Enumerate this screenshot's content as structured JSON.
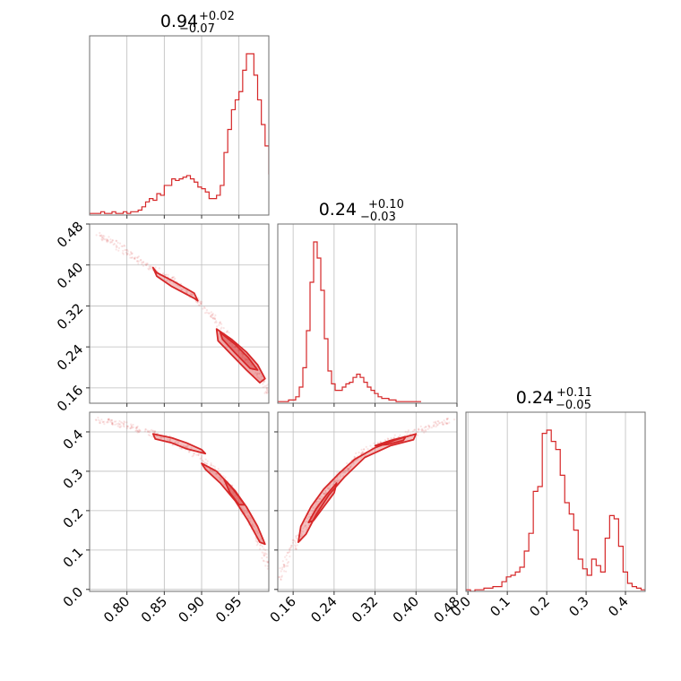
{
  "chart_data": {
    "type": "corner",
    "colors": {
      "line": "#d62728",
      "fill": "#d62728",
      "frame": "#6e6e6e",
      "grid": "#bdbdbd"
    },
    "grid": true,
    "parameters": [
      {
        "title": "0.94",
        "title_plus": "+0.02",
        "title_minus": "−0.07",
        "range": [
          0.75,
          0.99
        ],
        "ticks": [
          0.8,
          0.85,
          0.9,
          0.95
        ],
        "tick_labels": [
          "0.80",
          "0.85",
          "0.90",
          "0.95"
        ],
        "hist_x0": 0.75,
        "hist_dx": 0.005,
        "hist": [
          1,
          1,
          1,
          2,
          1,
          1,
          2,
          1,
          1,
          2,
          1,
          2,
          2,
          3,
          5,
          8,
          10,
          9,
          13,
          12,
          18,
          18,
          22,
          21,
          22,
          23,
          24,
          22,
          20,
          17,
          16,
          14,
          10,
          10,
          12,
          18,
          38,
          52,
          64,
          70,
          75,
          88,
          98,
          98,
          85,
          70,
          55,
          42,
          25,
          12
        ]
      },
      {
        "title": "0.24",
        "title_plus": "+0.10",
        "title_minus": "−0.03",
        "range": [
          0.13,
          0.48
        ],
        "ticks": [
          0.16,
          0.24,
          0.32,
          0.4,
          0.48
        ],
        "tick_labels": [
          "0.16",
          "0.24",
          "0.32",
          "0.40",
          "0.48"
        ],
        "hist_x0": 0.13,
        "hist_dx": 0.007,
        "hist": [
          1,
          1,
          1,
          2,
          2,
          4,
          10,
          22,
          45,
          75,
          100,
          90,
          70,
          40,
          20,
          12,
          8,
          8,
          10,
          12,
          13,
          16,
          18,
          16,
          13,
          10,
          8,
          6,
          4,
          3,
          3,
          2,
          2,
          1,
          1,
          1,
          1,
          1,
          1,
          1
        ]
      },
      {
        "title": "0.24",
        "title_plus": "+0.11",
        "title_minus": "−0.05",
        "range": [
          -0.005,
          0.45
        ],
        "ticks": [
          0.0,
          0.1,
          0.2,
          0.3,
          0.4
        ],
        "tick_labels": [
          "0.0",
          "0.1",
          "0.2",
          "0.3",
          "0.4"
        ],
        "hist_x0": -0.005,
        "hist_dx": 0.0114,
        "hist": [
          1,
          0,
          1,
          1,
          2,
          2,
          3,
          3,
          6,
          9,
          10,
          12,
          15,
          25,
          36,
          62,
          65,
          98,
          100,
          93,
          88,
          72,
          55,
          48,
          38,
          20,
          14,
          10,
          20,
          16,
          12,
          33,
          47,
          45,
          28,
          12,
          5,
          3,
          2,
          1
        ]
      }
    ],
    "pairs": [
      {
        "x_param": 0,
        "y_param": 1,
        "row": 1,
        "col": 0,
        "curve": [
          [
            0.76,
            0.46
          ],
          [
            0.78,
            0.445
          ],
          [
            0.8,
            0.425
          ],
          [
            0.82,
            0.405
          ],
          [
            0.84,
            0.39
          ],
          [
            0.86,
            0.37
          ],
          [
            0.88,
            0.35
          ],
          [
            0.9,
            0.32
          ],
          [
            0.92,
            0.29
          ],
          [
            0.94,
            0.25
          ],
          [
            0.96,
            0.22
          ],
          [
            0.98,
            0.175
          ],
          [
            0.99,
            0.15
          ]
        ],
        "contours": [
          [
            [
              0.835,
              0.395
            ],
            [
              0.84,
              0.385
            ],
            [
              0.86,
              0.37
            ],
            [
              0.89,
              0.345
            ],
            [
              0.895,
              0.33
            ],
            [
              0.89,
              0.335
            ],
            [
              0.86,
              0.358
            ],
            [
              0.84,
              0.378
            ],
            [
              0.835,
              0.395
            ]
          ],
          [
            [
              0.92,
              0.275
            ],
            [
              0.94,
              0.255
            ],
            [
              0.96,
              0.23
            ],
            [
              0.975,
              0.205
            ],
            [
              0.985,
              0.178
            ],
            [
              0.978,
              0.17
            ],
            [
              0.96,
              0.195
            ],
            [
              0.94,
              0.225
            ],
            [
              0.922,
              0.252
            ],
            [
              0.92,
              0.275
            ]
          ],
          [
            [
              0.925,
              0.268
            ],
            [
              0.945,
              0.245
            ],
            [
              0.962,
              0.22
            ],
            [
              0.975,
              0.195
            ],
            [
              0.965,
              0.198
            ],
            [
              0.945,
              0.228
            ],
            [
              0.928,
              0.255
            ],
            [
              0.925,
              0.268
            ]
          ]
        ]
      },
      {
        "x_param": 0,
        "y_param": 2,
        "row": 2,
        "col": 0,
        "curve": [
          [
            0.76,
            0.43
          ],
          [
            0.78,
            0.425
          ],
          [
            0.8,
            0.415
          ],
          [
            0.82,
            0.405
          ],
          [
            0.84,
            0.392
          ],
          [
            0.86,
            0.378
          ],
          [
            0.88,
            0.36
          ],
          [
            0.9,
            0.33
          ],
          [
            0.92,
            0.3
          ],
          [
            0.94,
            0.255
          ],
          [
            0.96,
            0.19
          ],
          [
            0.98,
            0.11
          ],
          [
            0.99,
            0.05
          ]
        ],
        "contours": [
          [
            [
              0.835,
              0.395
            ],
            [
              0.86,
              0.385
            ],
            [
              0.88,
              0.372
            ],
            [
              0.9,
              0.355
            ],
            [
              0.905,
              0.345
            ],
            [
              0.88,
              0.357
            ],
            [
              0.86,
              0.372
            ],
            [
              0.838,
              0.382
            ],
            [
              0.835,
              0.395
            ]
          ],
          [
            [
              0.9,
              0.32
            ],
            [
              0.92,
              0.3
            ],
            [
              0.94,
              0.26
            ],
            [
              0.96,
              0.21
            ],
            [
              0.975,
              0.16
            ],
            [
              0.985,
              0.115
            ],
            [
              0.978,
              0.12
            ],
            [
              0.962,
              0.175
            ],
            [
              0.945,
              0.225
            ],
            [
              0.925,
              0.27
            ],
            [
              0.905,
              0.305
            ],
            [
              0.9,
              0.32
            ]
          ],
          [
            [
              0.93,
              0.28
            ],
            [
              0.945,
              0.25
            ],
            [
              0.958,
              0.215
            ],
            [
              0.95,
              0.215
            ],
            [
              0.938,
              0.245
            ],
            [
              0.93,
              0.28
            ]
          ]
        ]
      },
      {
        "x_param": 1,
        "y_param": 2,
        "row": 2,
        "col": 1,
        "curve": [
          [
            0.13,
            0.02
          ],
          [
            0.15,
            0.08
          ],
          [
            0.17,
            0.13
          ],
          [
            0.19,
            0.18
          ],
          [
            0.21,
            0.225
          ],
          [
            0.23,
            0.26
          ],
          [
            0.25,
            0.29
          ],
          [
            0.27,
            0.315
          ],
          [
            0.29,
            0.34
          ],
          [
            0.32,
            0.365
          ],
          [
            0.36,
            0.385
          ],
          [
            0.4,
            0.4
          ],
          [
            0.44,
            0.42
          ],
          [
            0.47,
            0.43
          ]
        ],
        "contours": [
          [
            [
              0.17,
              0.12
            ],
            [
              0.175,
              0.16
            ],
            [
              0.195,
              0.21
            ],
            [
              0.22,
              0.255
            ],
            [
              0.25,
              0.295
            ],
            [
              0.28,
              0.33
            ],
            [
              0.32,
              0.36
            ],
            [
              0.36,
              0.38
            ],
            [
              0.4,
              0.395
            ],
            [
              0.395,
              0.38
            ],
            [
              0.35,
              0.365
            ],
            [
              0.3,
              0.335
            ],
            [
              0.26,
              0.285
            ],
            [
              0.23,
              0.24
            ],
            [
              0.205,
              0.19
            ],
            [
              0.185,
              0.14
            ],
            [
              0.17,
              0.12
            ]
          ],
          [
            [
              0.19,
              0.17
            ],
            [
              0.205,
              0.205
            ],
            [
              0.225,
              0.24
            ],
            [
              0.245,
              0.27
            ],
            [
              0.24,
              0.245
            ],
            [
              0.22,
              0.21
            ],
            [
              0.2,
              0.175
            ],
            [
              0.19,
              0.17
            ]
          ],
          [
            [
              0.32,
              0.365
            ],
            [
              0.35,
              0.378
            ],
            [
              0.38,
              0.388
            ],
            [
              0.375,
              0.378
            ],
            [
              0.345,
              0.368
            ],
            [
              0.32,
              0.365
            ]
          ]
        ]
      }
    ]
  }
}
